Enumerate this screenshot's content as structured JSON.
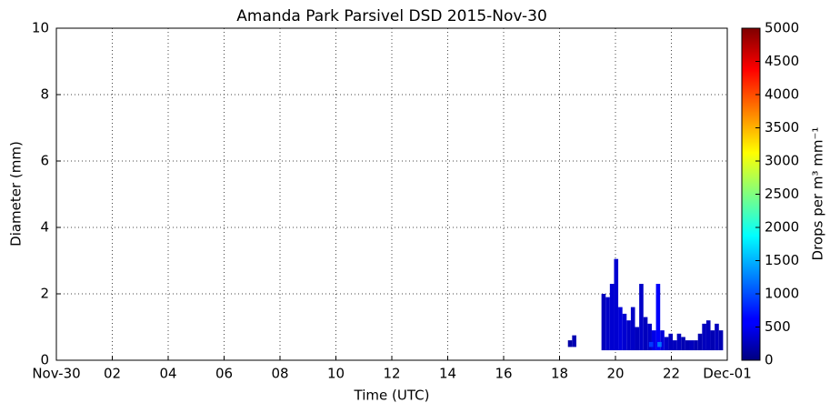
{
  "chart_data": {
    "type": "heatmap",
    "title": "Amanda Park Parsivel DSD 2015-Nov-30",
    "xlabel": "Time (UTC)",
    "ylabel": "Diameter (mm)",
    "colorbar_label": "Drops per m³ mm⁻¹",
    "xlim": [
      0,
      24
    ],
    "xticks": [
      {
        "value": 0,
        "label": "Nov-30"
      },
      {
        "value": 2,
        "label": "02"
      },
      {
        "value": 4,
        "label": "04"
      },
      {
        "value": 6,
        "label": "06"
      },
      {
        "value": 8,
        "label": "08"
      },
      {
        "value": 10,
        "label": "10"
      },
      {
        "value": 12,
        "label": "12"
      },
      {
        "value": 14,
        "label": "14"
      },
      {
        "value": 16,
        "label": "16"
      },
      {
        "value": 18,
        "label": "18"
      },
      {
        "value": 20,
        "label": "20"
      },
      {
        "value": 22,
        "label": "22"
      },
      {
        "value": 24,
        "label": "Dec-01"
      }
    ],
    "ylim": [
      0,
      10
    ],
    "yticks": [
      0,
      2,
      4,
      6,
      8,
      10
    ],
    "clim": [
      0,
      5000
    ],
    "cticks": [
      0,
      500,
      1000,
      1500,
      2000,
      2500,
      3000,
      3500,
      4000,
      4500,
      5000
    ],
    "colormap": "jet",
    "grid": true,
    "cell_width": 0.15,
    "x": [
      18.3,
      18.45,
      19.5,
      19.65,
      19.8,
      19.95,
      20.1,
      20.25,
      20.4,
      20.55,
      20.7,
      20.85,
      21.0,
      21.15,
      21.3,
      21.45,
      21.6,
      21.75,
      21.9,
      22.05,
      22.2,
      22.35,
      22.5,
      22.65,
      22.8,
      22.95,
      23.1,
      23.25,
      23.4,
      23.55,
      23.7,
      21.5,
      21.2
    ],
    "y_bottom": [
      0.4,
      0.4,
      0.3,
      0.3,
      0.3,
      0.3,
      0.3,
      0.3,
      0.3,
      0.3,
      0.3,
      0.3,
      0.3,
      0.3,
      0.3,
      0.3,
      0.3,
      0.3,
      0.3,
      0.3,
      0.3,
      0.3,
      0.3,
      0.3,
      0.3,
      0.3,
      0.3,
      0.3,
      0.3,
      0.3,
      0.3,
      0.4,
      0.4
    ],
    "y_top": [
      0.6,
      0.75,
      2.0,
      1.9,
      2.3,
      3.05,
      1.6,
      1.4,
      1.2,
      1.6,
      1.0,
      2.3,
      1.3,
      1.1,
      0.9,
      2.3,
      0.9,
      0.7,
      0.8,
      0.6,
      0.8,
      0.7,
      0.6,
      0.6,
      0.6,
      0.8,
      1.1,
      1.2,
      0.9,
      1.1,
      0.9,
      0.55,
      0.55
    ],
    "values": [
      200,
      250,
      300,
      350,
      400,
      400,
      450,
      400,
      350,
      350,
      300,
      350,
      300,
      350,
      500,
      600,
      450,
      350,
      300,
      300,
      300,
      250,
      250,
      300,
      250,
      250,
      300,
      300,
      250,
      300,
      250,
      1200,
      900
    ]
  }
}
